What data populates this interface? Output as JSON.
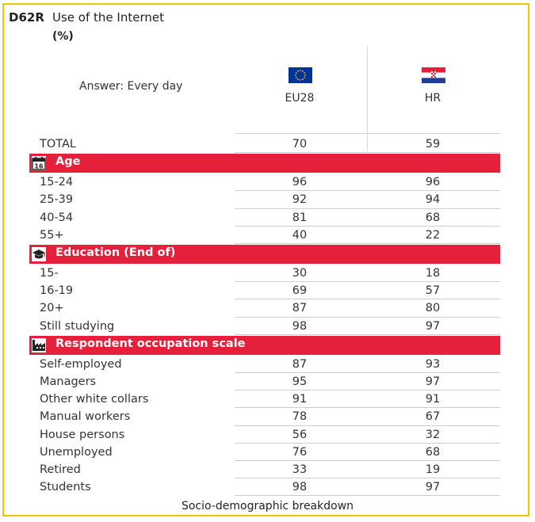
{
  "header": {
    "code": "D62R",
    "title": "Use of the Internet",
    "unit": "(%)",
    "answer_label": "Answer: Every day"
  },
  "columns": [
    {
      "label": "EU28",
      "icon": "eu-flag-icon"
    },
    {
      "label": "HR",
      "icon": "croatia-flag-icon"
    }
  ],
  "colors": {
    "frame": "#f2c500",
    "section": "#e4203a",
    "eu_blue": "#003399",
    "eu_star": "#ffcc00"
  },
  "chart_data": {
    "type": "table",
    "columns": [
      "EU28",
      "HR"
    ],
    "total": {
      "label": "TOTAL",
      "values": [
        70,
        59
      ]
    },
    "sections": [
      {
        "name": "Age",
        "icon": "calendar-icon",
        "icon_text": "16",
        "rows": [
          {
            "label": "15-24",
            "values": [
              96,
              96
            ]
          },
          {
            "label": "25-39",
            "values": [
              92,
              94
            ]
          },
          {
            "label": "40-54",
            "values": [
              81,
              68
            ]
          },
          {
            "label": "55+",
            "values": [
              40,
              22
            ]
          }
        ]
      },
      {
        "name": "Education (End of)",
        "icon": "graduation-cap-icon",
        "rows": [
          {
            "label": "15-",
            "values": [
              30,
              18
            ]
          },
          {
            "label": "16-19",
            "values": [
              69,
              57
            ]
          },
          {
            "label": "20+",
            "values": [
              87,
              80
            ]
          },
          {
            "label": "Still studying",
            "values": [
              98,
              97
            ]
          }
        ]
      },
      {
        "name": "Respondent occupation scale",
        "icon": "factory-icon",
        "rows": [
          {
            "label": "Self-employed",
            "values": [
              87,
              93
            ]
          },
          {
            "label": "Managers",
            "values": [
              95,
              97
            ]
          },
          {
            "label": "Other white collars",
            "values": [
              91,
              91
            ]
          },
          {
            "label": "Manual workers",
            "values": [
              78,
              67
            ]
          },
          {
            "label": "House persons",
            "values": [
              56,
              32
            ]
          },
          {
            "label": "Unemployed",
            "values": [
              76,
              68
            ]
          },
          {
            "label": "Retired",
            "values": [
              33,
              19
            ]
          },
          {
            "label": "Students",
            "values": [
              98,
              97
            ]
          }
        ]
      }
    ]
  },
  "footer": "Socio-demographic breakdown"
}
